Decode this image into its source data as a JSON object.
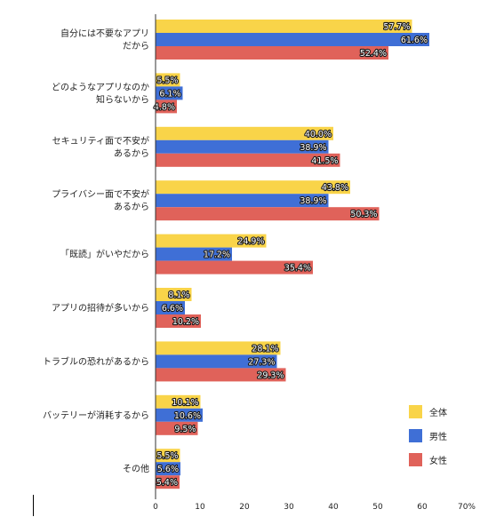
{
  "chart_data": {
    "type": "bar",
    "orientation": "horizontal",
    "categories": [
      "自分には不要なアプリ\nだから",
      "どのようなアプリなのか\n知らないから",
      "セキュリティ面で不安が\nあるから",
      "プライバシー面で不安が\nあるから",
      "「既読」がいやだから",
      "アプリの招待が多いから",
      "トラブルの恐れがあるから",
      "バッテリーが消耗するから",
      "その他"
    ],
    "series": [
      {
        "name": "全体",
        "color": "#f9d449",
        "values": [
          57.7,
          5.5,
          40.0,
          43.8,
          24.9,
          8.1,
          28.1,
          10.1,
          5.5
        ]
      },
      {
        "name": "男性",
        "color": "#3f6fd6",
        "values": [
          61.6,
          6.1,
          38.9,
          38.9,
          17.2,
          6.6,
          27.3,
          10.6,
          5.6
        ]
      },
      {
        "name": "女性",
        "color": "#e0625a",
        "values": [
          52.4,
          4.8,
          41.5,
          50.3,
          35.4,
          10.2,
          29.3,
          9.5,
          5.4
        ]
      }
    ],
    "value_labels": [
      [
        "57.7%",
        "61.6%",
        "52.4%"
      ],
      [
        "5.5%",
        "6.1%",
        "4.8%"
      ],
      [
        "40.0%",
        "38.9%",
        "41.5%"
      ],
      [
        "43.8%",
        "38.9%",
        "50.3%"
      ],
      [
        "24.9%",
        "17.2%",
        "35.4%"
      ],
      [
        "8.1%",
        "6.6%",
        "10.2%"
      ],
      [
        "28.1%",
        "27.3%",
        "29.3%"
      ],
      [
        "10.1%",
        "10.6%",
        "9.5%"
      ],
      [
        "5.5%",
        "5.6%",
        "5.4%"
      ]
    ],
    "xlim": [
      0,
      70
    ],
    "x_ticks": [
      "0",
      "10",
      "20",
      "30",
      "40",
      "50",
      "60",
      "70%"
    ],
    "x_tick_values": [
      0,
      10,
      20,
      30,
      40,
      50,
      60,
      70
    ],
    "grid": false,
    "legend_position": "bottom-right",
    "title": "",
    "xlabel": "",
    "ylabel": ""
  }
}
